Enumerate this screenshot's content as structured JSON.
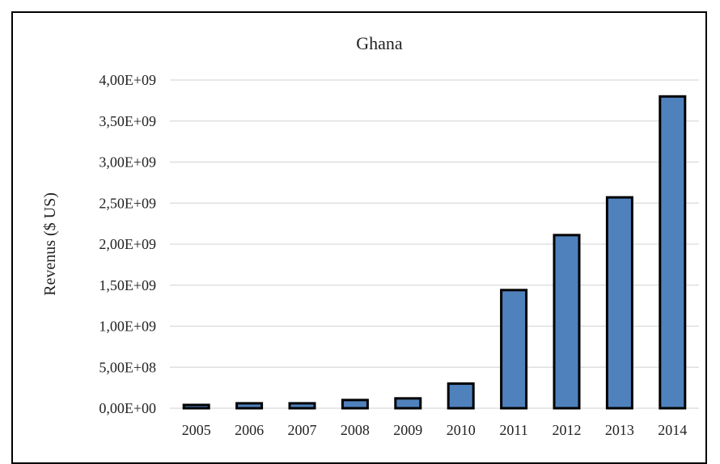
{
  "chart_data": {
    "type": "bar",
    "title": "Ghana",
    "xlabel": "",
    "ylabel": "Revenus ($ US)",
    "categories": [
      "2005",
      "2006",
      "2007",
      "2008",
      "2009",
      "2010",
      "2011",
      "2012",
      "2013",
      "2014"
    ],
    "values": [
      40000000,
      60000000,
      60000000,
      100000000,
      120000000,
      300000000,
      1440000000,
      2110000000,
      2570000000,
      3800000000
    ],
    "ylim": [
      0,
      4000000000
    ],
    "yticks": [
      0,
      500000000,
      1000000000,
      1500000000,
      2000000000,
      2500000000,
      3000000000,
      3500000000,
      4000000000
    ],
    "ytick_labels": [
      "0,00E+00",
      "5,00E+08",
      "1,00E+09",
      "1,50E+09",
      "2,00E+09",
      "2,50E+09",
      "3,00E+09",
      "3,50E+09",
      "4,00E+09"
    ],
    "grid": true,
    "colors": {
      "bar_fill": "#4f81bd",
      "bar_edge": "#000000",
      "grid": "#d9d9d9"
    }
  }
}
